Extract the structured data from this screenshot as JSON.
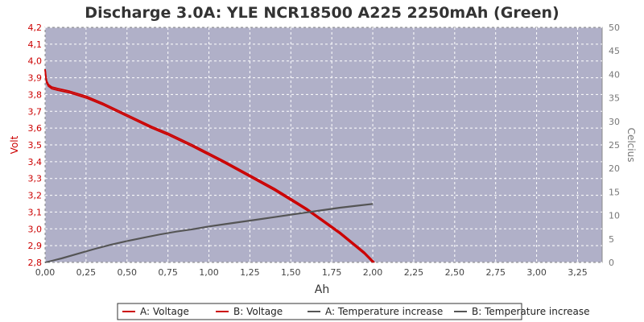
{
  "chart_data": {
    "type": "line",
    "title": "Discharge 3.0A: YLE NCR18500 A225 2250mAh (Green)",
    "xlabel": "Ah",
    "ylabel": "Volt",
    "y2label": "Celcius",
    "xlim": [
      0,
      3.4
    ],
    "ylim": [
      2.8,
      4.2
    ],
    "y2lim": [
      0,
      50
    ],
    "x_ticks": [
      "0,00",
      "0,25",
      "0,50",
      "0,75",
      "1,00",
      "1,25",
      "1,50",
      "1,75",
      "2,00",
      "2,25",
      "2,50",
      "2,75",
      "3,00",
      "3,25"
    ],
    "y_ticks": [
      "2,8",
      "2,9",
      "3,0",
      "3,1",
      "3,2",
      "3,3",
      "3,4",
      "3,5",
      "3,6",
      "3,7",
      "3,8",
      "3,9",
      "4,0",
      "4,1",
      "4,2"
    ],
    "y2_ticks": [
      "0",
      "5",
      "10",
      "15",
      "20",
      "25",
      "30",
      "35",
      "40",
      "45",
      "50"
    ],
    "grid": true,
    "legend_position": "bottom",
    "colors": {
      "plot_background": "#b0b0c8",
      "grid": "#ffffff",
      "voltage": "#cc0000",
      "temperature": "#555555"
    },
    "series": [
      {
        "name": "A: Voltage",
        "axis": "left",
        "color": "#cc0000",
        "x": [
          0,
          0.005,
          0.01,
          0.02,
          0.04,
          0.08,
          0.15,
          0.25,
          0.35,
          0.5,
          0.65,
          0.75,
          0.9,
          1.0,
          1.1,
          1.25,
          1.4,
          1.5,
          1.6,
          1.7,
          1.8,
          1.9,
          1.95,
          1.98,
          2.0
        ],
        "y": [
          3.95,
          3.9,
          3.87,
          3.85,
          3.835,
          3.825,
          3.81,
          3.78,
          3.74,
          3.67,
          3.6,
          3.56,
          3.49,
          3.44,
          3.39,
          3.31,
          3.23,
          3.17,
          3.11,
          3.04,
          2.97,
          2.89,
          2.85,
          2.82,
          2.8
        ]
      },
      {
        "name": "B: Voltage",
        "axis": "left",
        "color": "#cc0000",
        "x": [
          0,
          0.005,
          0.01,
          0.02,
          0.04,
          0.08,
          0.15,
          0.25,
          0.35,
          0.5,
          0.65,
          0.75,
          0.9,
          1.0,
          1.1,
          1.25,
          1.4,
          1.5,
          1.6,
          1.7,
          1.8,
          1.9,
          1.95,
          1.98,
          2.01
        ],
        "y": [
          3.95,
          3.91,
          3.88,
          3.86,
          3.845,
          3.835,
          3.82,
          3.79,
          3.75,
          3.68,
          3.61,
          3.57,
          3.5,
          3.45,
          3.4,
          3.32,
          3.24,
          3.18,
          3.12,
          3.05,
          2.98,
          2.9,
          2.86,
          2.83,
          2.8
        ]
      },
      {
        "name": "A: Temperature increase",
        "axis": "right",
        "color": "#555555",
        "x": [
          0,
          0.1,
          0.2,
          0.3,
          0.4,
          0.5,
          0.6,
          0.7,
          0.8,
          0.9,
          1.0,
          1.1,
          1.2,
          1.3,
          1.4,
          1.5,
          1.6,
          1.7,
          1.8,
          1.9,
          2.0
        ],
        "y": [
          0,
          0.8,
          1.8,
          2.8,
          3.7,
          4.5,
          5.2,
          5.9,
          6.5,
          7.0,
          7.6,
          8.1,
          8.6,
          9.1,
          9.6,
          10.1,
          10.6,
          11.1,
          11.6,
          12.0,
          12.4
        ]
      },
      {
        "name": "B: Temperature increase",
        "axis": "right",
        "color": "#555555",
        "x": [
          0,
          0.1,
          0.2,
          0.3,
          0.4,
          0.5,
          0.6,
          0.7,
          0.8,
          0.9,
          1.0,
          1.1,
          1.2,
          1.3,
          1.4,
          1.5,
          1.6,
          1.7,
          1.8,
          1.9,
          2.0
        ],
        "y": [
          0,
          0.9,
          1.9,
          2.9,
          3.8,
          4.6,
          5.3,
          6.0,
          6.6,
          7.1,
          7.7,
          8.2,
          8.7,
          9.2,
          9.7,
          10.2,
          10.7,
          11.2,
          11.7,
          12.1,
          12.5
        ]
      }
    ]
  }
}
